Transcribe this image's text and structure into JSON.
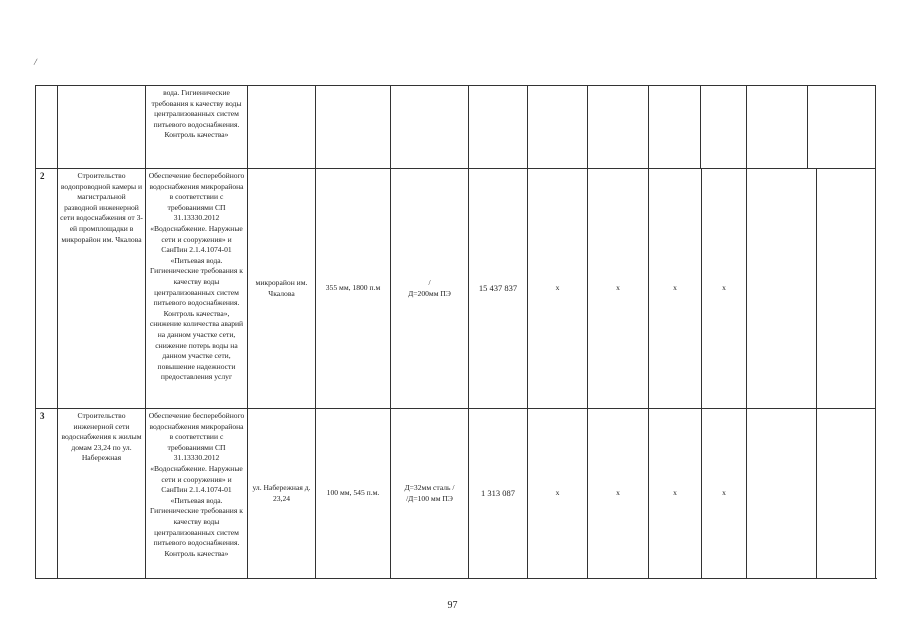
{
  "corner_mark": "/",
  "rows": [
    {
      "num": "",
      "name": "",
      "purpose": "вода. Гигиенические требования к качеству воды централизованных систем питьевого водоснабжения. Контроль качества»"
    },
    {
      "num": "2",
      "name": "Строительство водопроводной камеры и магистральной разводной инженерной сети водоснабжения от 3-ей промплощадки в микрорайон им. Чкалова",
      "purpose": "Обеспечение бесперебойного водоснабжения микрорайона в соответствии с требованиями СП 31.13330.2012 «Водоснабжение. Наружные сети и сооружения» и СанПин 2.1.4.1074-01 «Питьевая вода. Гигиенические требования к качеству воды централизованных систем питьевого водоснабжения. Контроль качества», снижение количества аварий на данном участке сети, снижение потерь воды на данном участке сети, повышение надежности предоставления услуг",
      "location": "микрорайон им. Чкалова",
      "diameter_length": "355 мм, 1800 п.м",
      "material_line1": "/",
      "material_line2": "Д=200мм ПЭ",
      "cost": "15 437 837",
      "x1": "x",
      "x2": "x",
      "x3": "x",
      "x4": "x"
    },
    {
      "num": "3",
      "name": "Строительство инженерной сети водоснабжения к жилым домам 23,24 по ул. Набережная",
      "purpose": "Обеспечение бесперебойного водоснабжения микрорайона в соответствии с требованиями СП 31.13330.2012 «Водоснабжение. Наружные сети и сооружения» и СанПин 2.1.4.1074-01 «Питьевая вода. Гигиенические требования к качеству воды централизованных систем питьевого водоснабжения. Контроль качества»",
      "location": "ул. Набережная д. 23,24",
      "diameter_length": "100 мм, 545 п.м.",
      "material_line1": "Д=32мм сталь /",
      "material_line2": "/Д=100 мм ПЭ",
      "cost": "1 313 087",
      "x1": "x",
      "x2": "x",
      "x3": "x",
      "x4": "x"
    }
  ],
  "page_number": "97"
}
